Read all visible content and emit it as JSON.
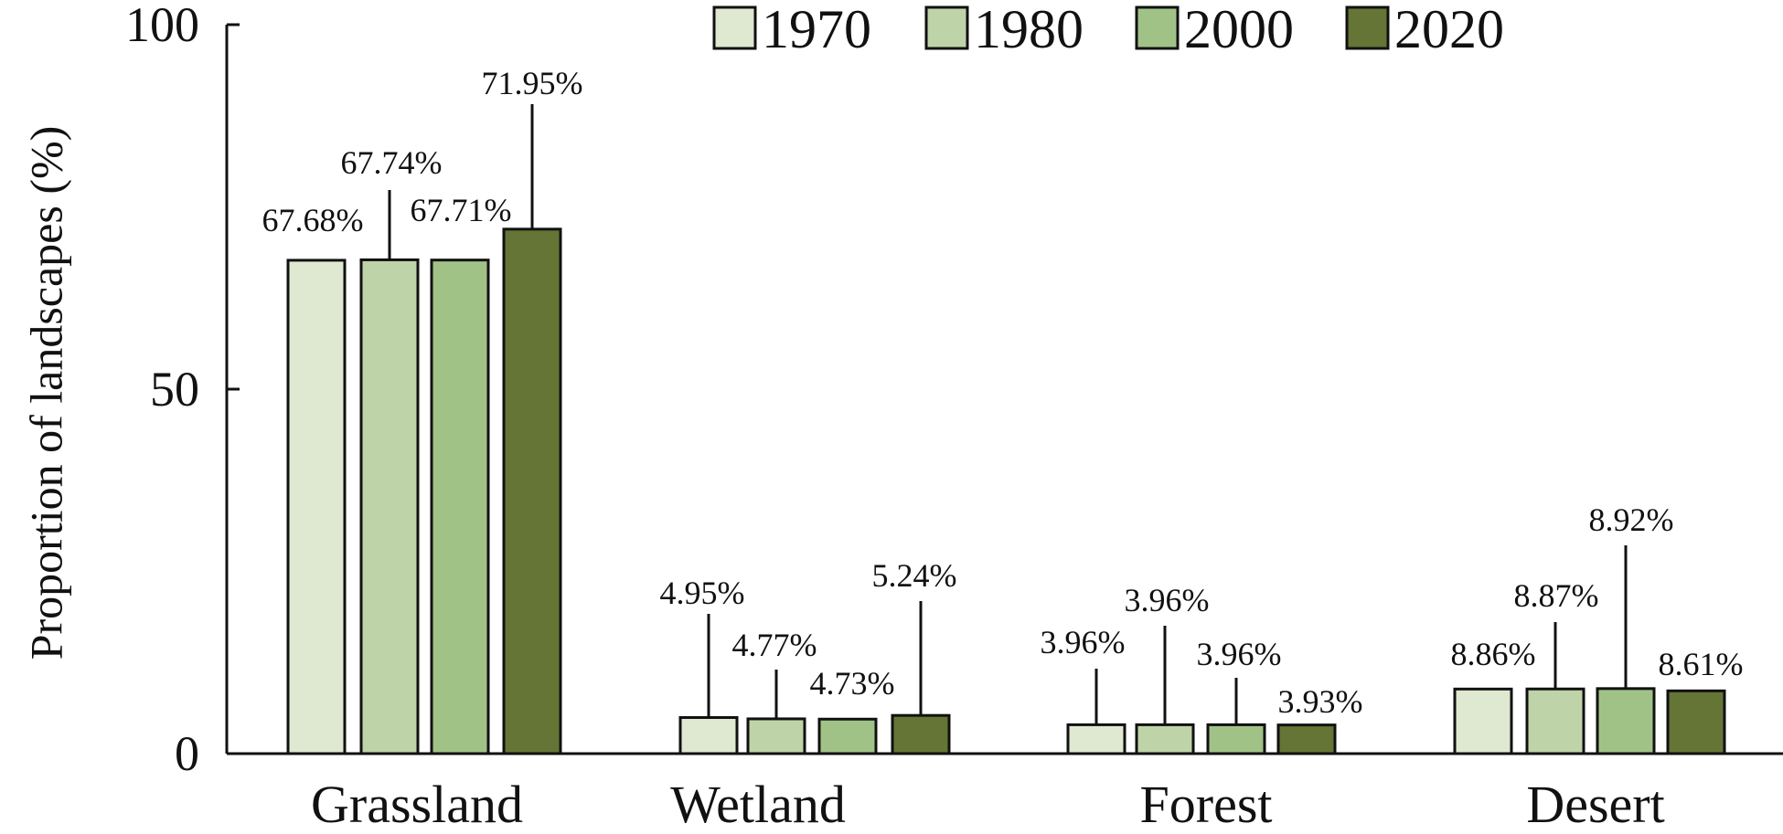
{
  "chart_data": {
    "type": "bar",
    "categories": [
      "Grassland",
      "Wetland",
      "Forest",
      "Desert"
    ],
    "series": [
      {
        "name": "1970",
        "color": "#dfe8d0",
        "values": [
          67.68,
          4.95,
          3.96,
          8.86
        ]
      },
      {
        "name": "1980",
        "color": "#bed4a8",
        "values": [
          67.74,
          4.77,
          3.96,
          8.87
        ]
      },
      {
        "name": "2000",
        "color": "#a1c287",
        "values": [
          67.71,
          4.73,
          3.96,
          8.92
        ]
      },
      {
        "name": "2020",
        "color": "#647535",
        "values": [
          71.95,
          5.24,
          3.93,
          8.61
        ]
      }
    ],
    "data_labels": [
      [
        "67.68%",
        "4.95%",
        "3.96%",
        "8.86%"
      ],
      [
        "67.74%",
        "4.77%",
        "3.96%",
        "8.87%"
      ],
      [
        "67.71%",
        "4.73%",
        "3.96%",
        "8.92%"
      ],
      [
        "71.95%",
        "5.24%",
        "3.93%",
        "8.61%"
      ]
    ],
    "ylabel": "Proportion of landscapes (%)",
    "xlabel": "",
    "ylim": [
      0,
      100
    ],
    "yticks": [
      0,
      50,
      100
    ],
    "grid": false,
    "legend_position": "top"
  }
}
